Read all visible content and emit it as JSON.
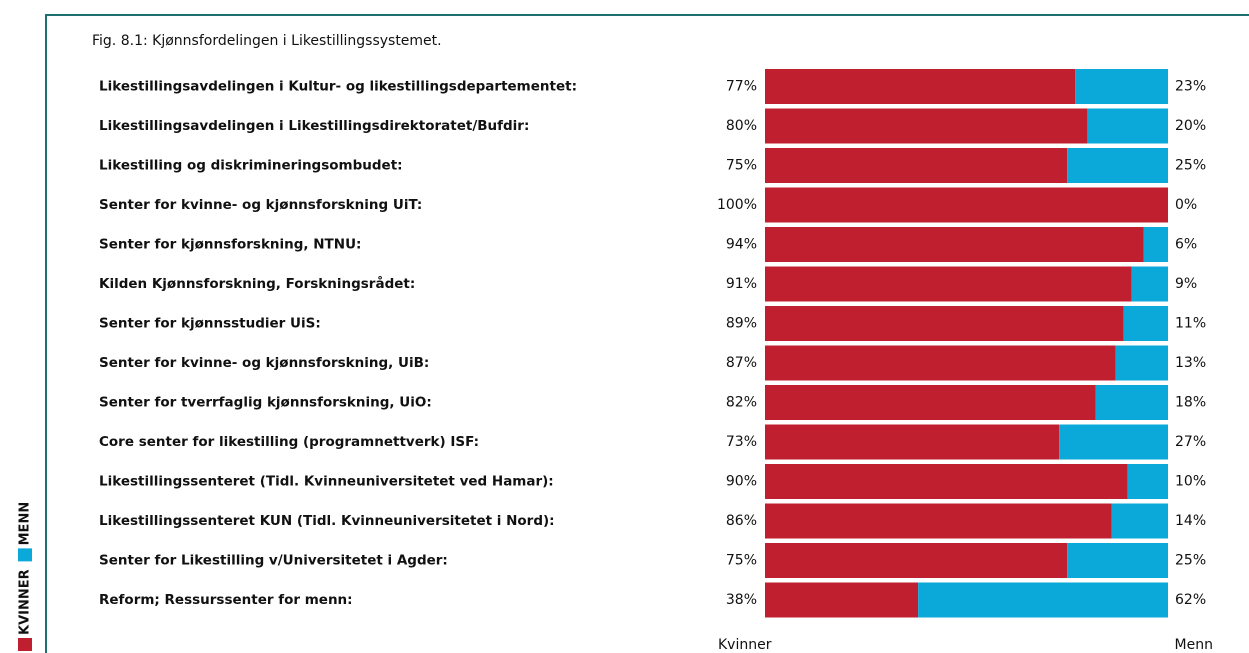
{
  "chart_data": {
    "type": "bar",
    "orientation": "horizontal",
    "stacked": true,
    "title": "Fig. 8.1: Kjønnsfordelingen i Likestillingssystemet.",
    "categories": [
      "Likestillingsavdelingen i Kultur- og likestillingsdepartementet:",
      "Likestillingsavdelingen i Likestillingsdirektoratet/Bufdir:",
      "Likestilling og diskrimineringsombudet:",
      "Senter for kvinne- og kjønnsforskning UiT:",
      "Senter for kjønnsforskning, NTNU:",
      "Kilden Kjønnsforskning, Forskningsrådet:",
      "Senter for kjønnsstudier UiS:",
      "Senter for kvinne- og kjønnsforskning, UiB:",
      "Senter for tverrfaglig kjønnsforskning, UiO:",
      "Core senter for likestilling (programnettverk) ISF:",
      "Likestillingssenteret (Tidl. Kvinneuniversitetet ved Hamar):",
      "Likestillingssenteret KUN (Tidl. Kvinneuniversitetet i Nord):",
      "Senter for Likestilling v/Universitetet i Agder:",
      "Reform; Ressurssenter for menn:"
    ],
    "series": [
      {
        "name": "KVINNER",
        "color": "#c01f2f",
        "values": [
          77,
          80,
          75,
          100,
          94,
          91,
          89,
          87,
          82,
          73,
          90,
          86,
          75,
          38
        ],
        "value_labels": [
          "77%",
          "80%",
          "75%",
          "100%",
          "94%",
          "91%",
          "89%",
          "87%",
          "82%",
          "73%",
          "90%",
          "86%",
          "75%",
          "38%"
        ]
      },
      {
        "name": "MENN",
        "color": "#0aa9da",
        "values": [
          23,
          20,
          25,
          0,
          6,
          9,
          11,
          13,
          18,
          27,
          10,
          14,
          25,
          62
        ],
        "value_labels": [
          "23%",
          "20%",
          "25%",
          "0%",
          "6%",
          "9%",
          "11%",
          "13%",
          "18%",
          "27%",
          "10%",
          "14%",
          "25%",
          "62%"
        ]
      }
    ],
    "xlim": [
      0,
      100
    ],
    "axis_labels": {
      "left": "Kvinner",
      "right": "Menn"
    }
  }
}
